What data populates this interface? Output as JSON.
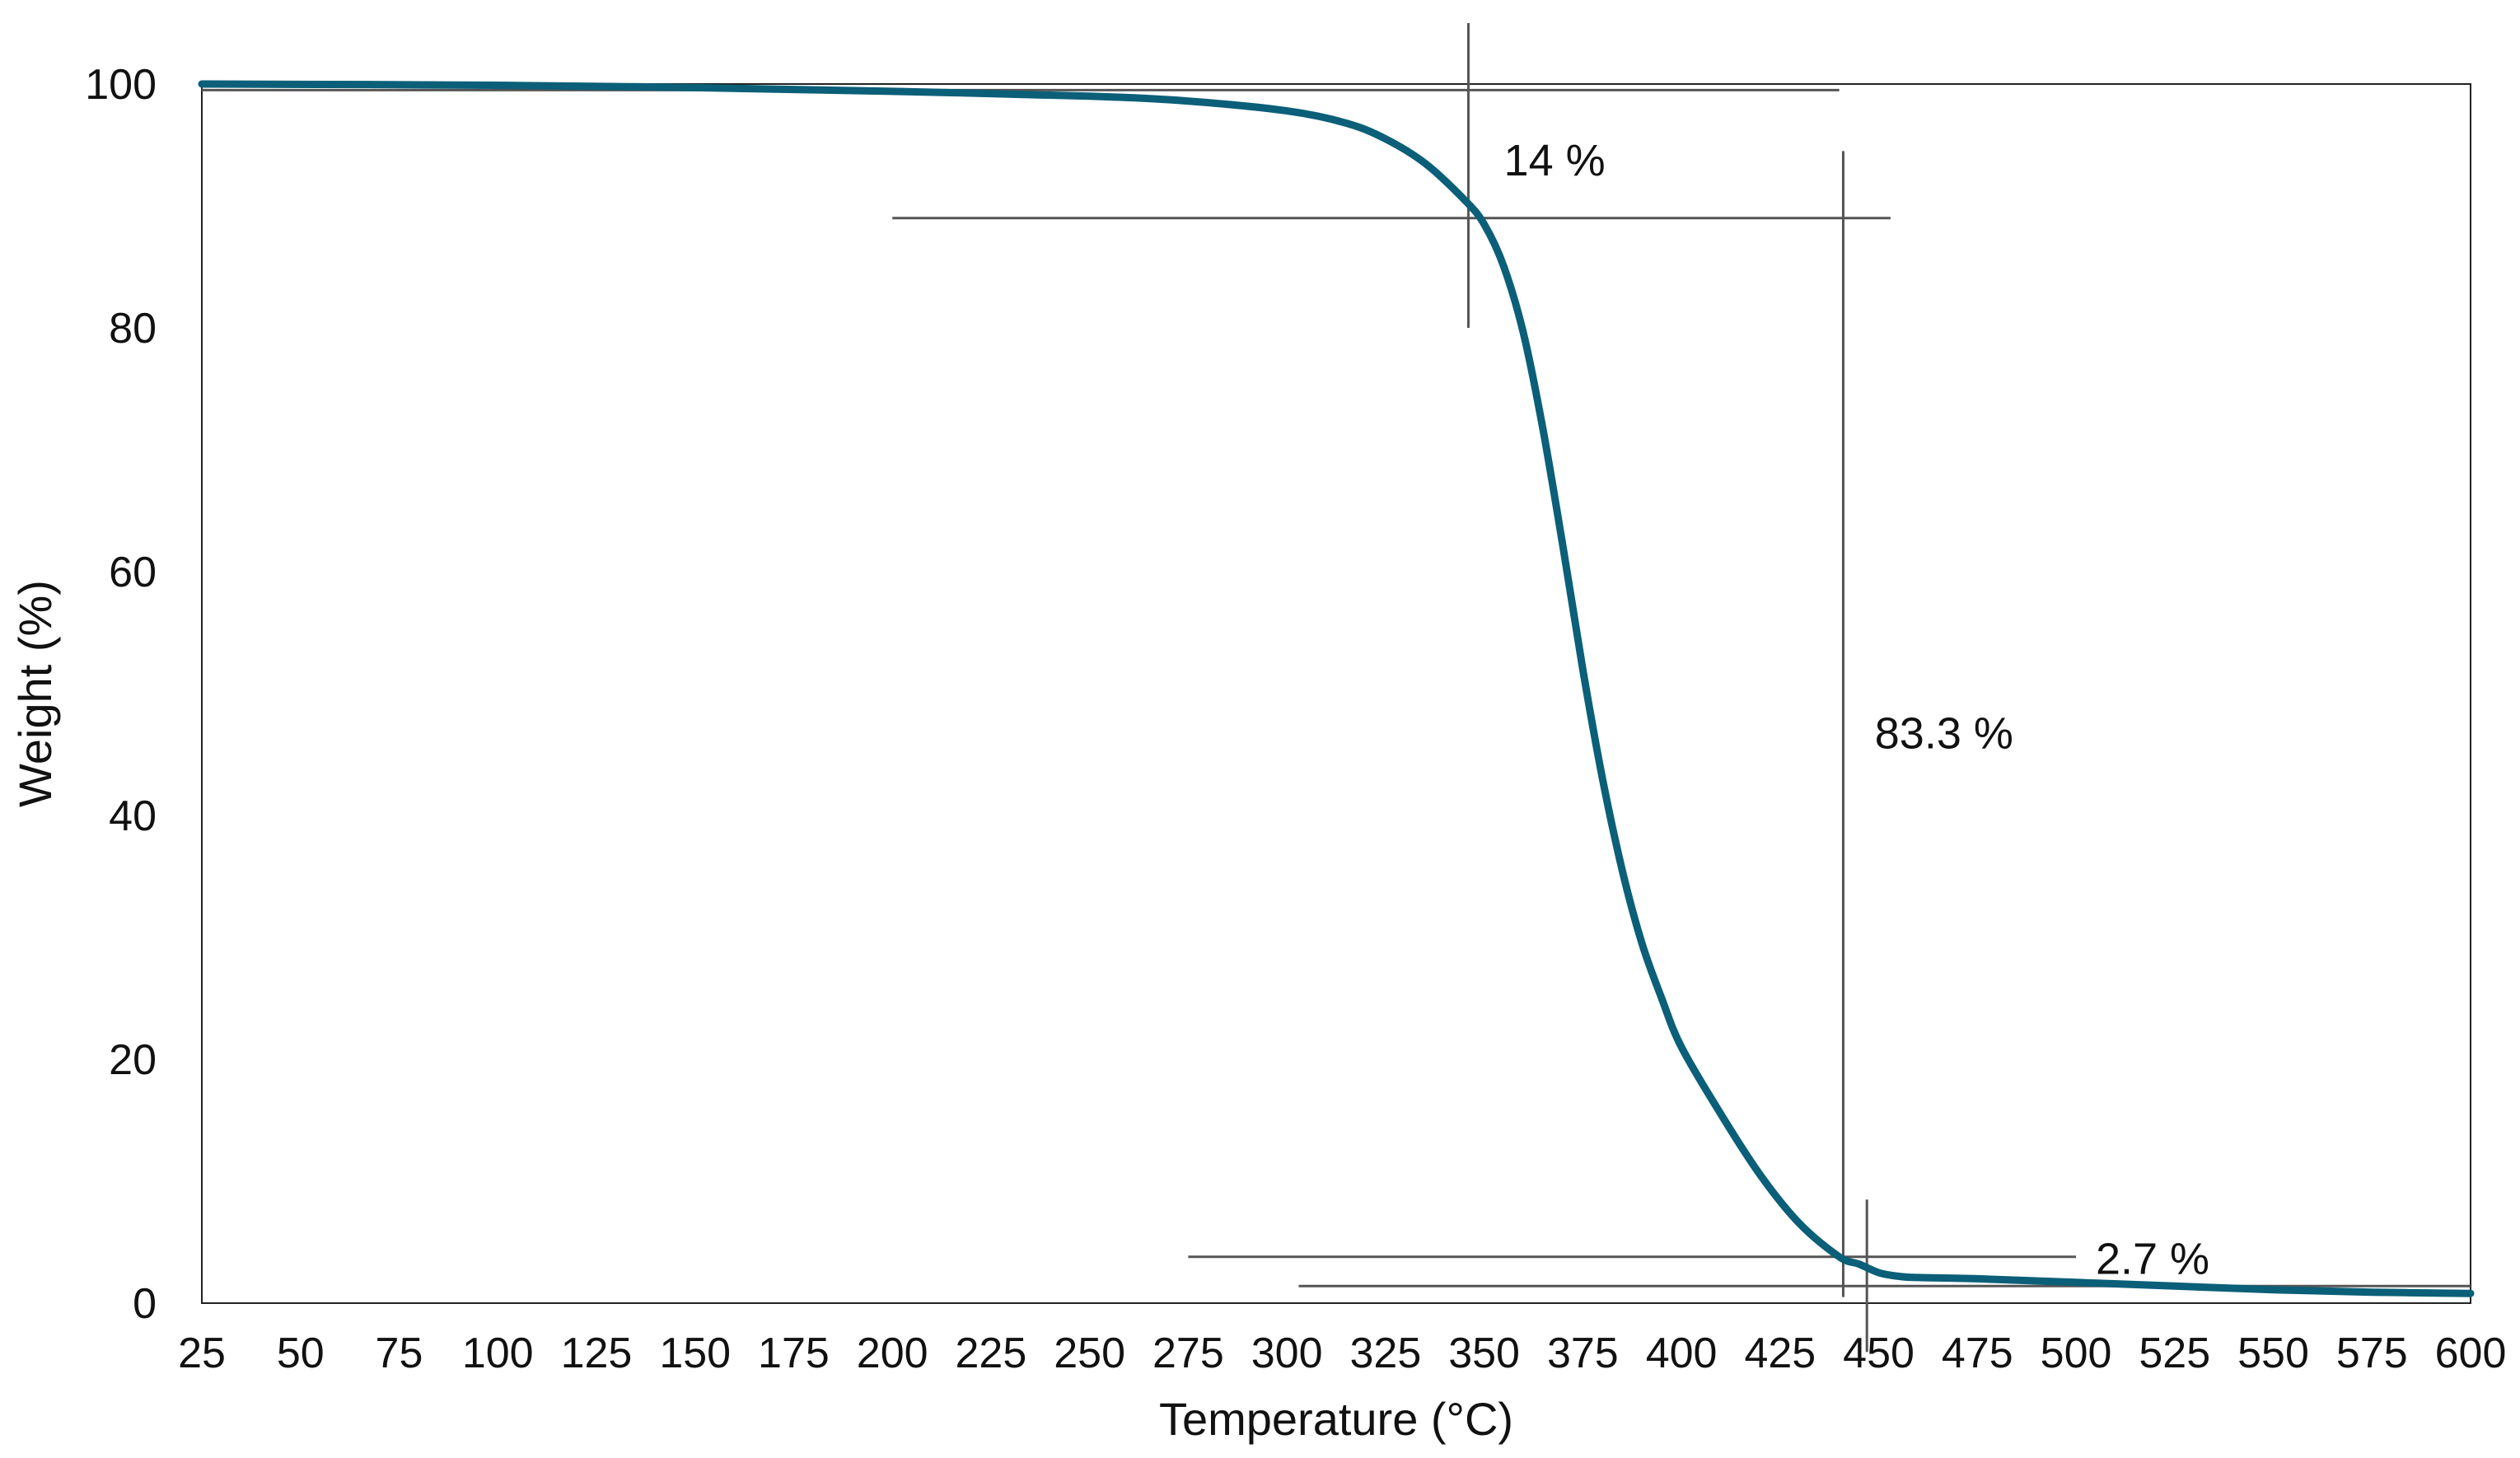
{
  "chart_data": {
    "type": "line",
    "title": "",
    "xlabel": "Temperature  (°C)",
    "ylabel": "Weight (%)",
    "xlim": [
      25,
      600
    ],
    "ylim": [
      0,
      100
    ],
    "x_ticks": [
      25,
      50,
      75,
      100,
      125,
      150,
      175,
      200,
      225,
      250,
      275,
      300,
      325,
      350,
      375,
      400,
      425,
      450,
      475,
      500,
      525,
      550,
      575,
      600
    ],
    "y_ticks": [
      0,
      20,
      40,
      60,
      80,
      100
    ],
    "grid": false,
    "legend": "none",
    "series": [
      {
        "color": "#0b5f78",
        "x": [
          25,
          100,
          150,
          200,
          250,
          275,
          300,
          315,
          325,
          335,
          345,
          350,
          355,
          360,
          365,
          370,
          375,
          380,
          385,
          390,
          395,
          400,
          410,
          420,
          430,
          440,
          445,
          450,
          455,
          460,
          475,
          500,
          525,
          550,
          575,
          600
        ],
        "y": [
          100,
          99.9,
          99.7,
          99.4,
          99.0,
          98.6,
          97.8,
          96.8,
          95.5,
          93.5,
          90.5,
          88.5,
          85.0,
          79.5,
          71.5,
          62.0,
          52.0,
          43.0,
          35.5,
          29.5,
          25.0,
          21.0,
          15.5,
          10.5,
          6.5,
          3.8,
          3.2,
          2.5,
          2.2,
          2.1,
          2.0,
          1.7,
          1.4,
          1.1,
          0.9,
          0.8
        ]
      }
    ],
    "reference_lines": [
      {
        "orientation": "horizontal",
        "value": 99.5,
        "from": 25,
        "to": 440
      },
      {
        "orientation": "horizontal",
        "value": 89.0,
        "from": 200,
        "to": 453
      },
      {
        "orientation": "horizontal",
        "value": 3.8,
        "from": 275,
        "to": 500
      },
      {
        "orientation": "horizontal",
        "value": 1.4,
        "from": 303,
        "to": 600
      },
      {
        "orientation": "vertical",
        "value": 346,
        "from": 80,
        "to": 105
      },
      {
        "orientation": "vertical",
        "value": 441,
        "from": 0.5,
        "to": 94.5
      },
      {
        "orientation": "vertical",
        "value": 447,
        "from": -4,
        "to": 8.5
      }
    ],
    "annotations": [
      {
        "text": "14 %",
        "x": 355,
        "y": 92.5
      },
      {
        "text": "83.3 %",
        "x": 449,
        "y": 45.5
      },
      {
        "text": "2.7 %",
        "x": 505,
        "y": 2.4
      }
    ]
  }
}
